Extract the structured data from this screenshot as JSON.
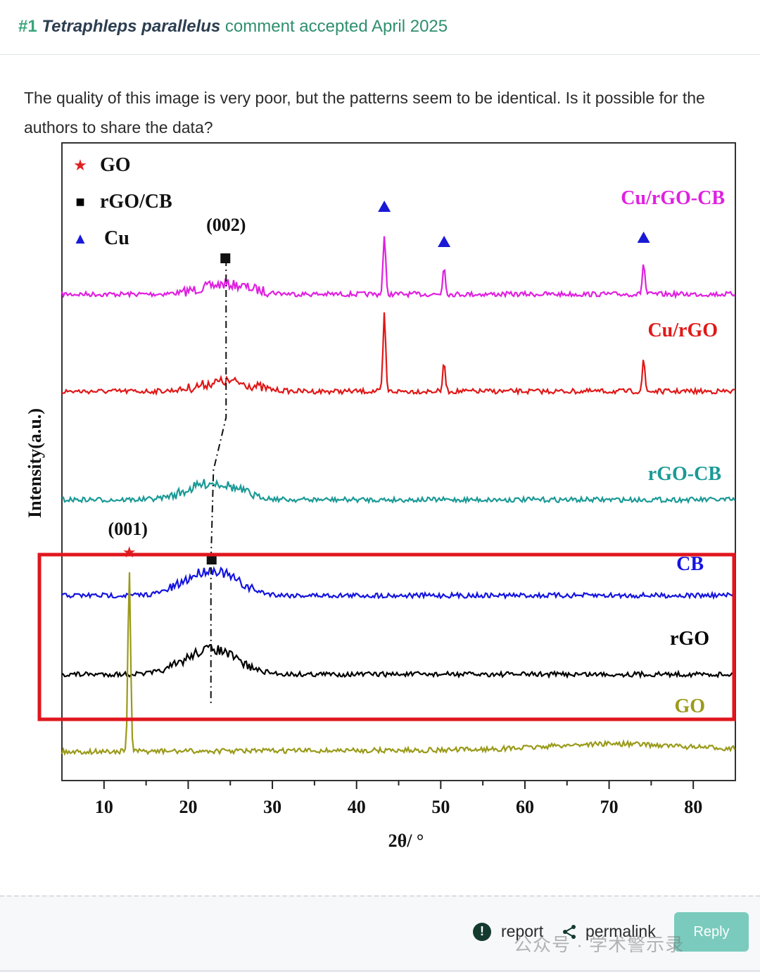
{
  "header": {
    "number": "#1",
    "species": "Tetraphleps parallelus",
    "text": "comment accepted April 2025"
  },
  "comment": {
    "body": "The quality of this image is very poor, but the patterns seem to be identical. Is it possible for the authors to share the data?"
  },
  "chart_data": {
    "type": "line",
    "xlabel": "2θ/ °",
    "ylabel": "Intensity(a.u.)",
    "xlim": [
      5,
      85
    ],
    "x_ticks": [
      "10",
      "20",
      "30",
      "40",
      "50",
      "60",
      "70",
      "80"
    ],
    "legend": [
      {
        "symbol": "★",
        "label": "GO",
        "color": "#e02020"
      },
      {
        "symbol": "■",
        "label": "rGO/CB",
        "color": "#000000"
      },
      {
        "symbol": "▲",
        "label": "Cu",
        "color": "#1a1ad6"
      }
    ],
    "annotations": [
      "(002)",
      "(001)"
    ],
    "cu_peaks": [
      43.3,
      50.4,
      74.1
    ],
    "series": [
      {
        "name": "Cu/rGO-CB",
        "color": "#e020e0",
        "broad_peak": 24.5,
        "peaks": [
          43.3,
          50.4,
          74.1
        ]
      },
      {
        "name": "Cu/rGO",
        "color": "#e01818",
        "broad_peak": 24.5,
        "peaks": [
          43.3,
          50.4,
          74.1
        ]
      },
      {
        "name": "rGO-CB",
        "color": "#1a9a96",
        "broad_peak": 23.0,
        "peaks": []
      },
      {
        "name": "CB",
        "color": "#1414e0",
        "broad_peak": 22.7,
        "peaks": []
      },
      {
        "name": "rGO",
        "color": "#000000",
        "broad_peak": 22.7,
        "peaks": []
      },
      {
        "name": "GO",
        "color": "#9a9a1a",
        "broad_peak": null,
        "peaks": [
          13.0
        ]
      }
    ],
    "highlight_color": "#e0161e"
  },
  "footer": {
    "report_label": "report",
    "permalink_label": "permalink",
    "reply_label": "Reply",
    "watermark": "公众号 · 学术警示录"
  }
}
